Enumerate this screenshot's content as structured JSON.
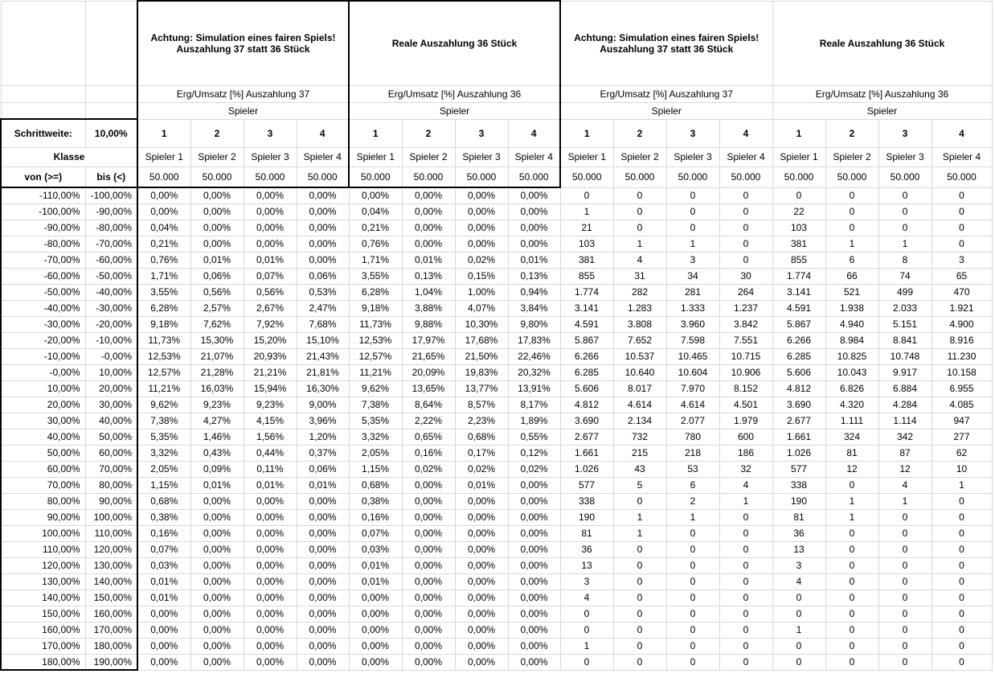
{
  "headers": {
    "title_fair_37": "Achtung: Simulation eines fairen Spiels! Auszahlung 37 statt 36 Stück",
    "title_real_36": "Reale Auszahlung 36 Stück",
    "sub_37": "Erg/Umsatz [%] Auszahlung 37",
    "sub_36": "Erg/Umsatz [%] Auszahlung 36",
    "spieler": "Spieler",
    "schrittweite_label": "Schrittweite:",
    "schrittweite_value": "10,00%",
    "klasse": "Klasse",
    "von": "von (>=)",
    "bis": "bis (<)",
    "player_numbers": [
      "1",
      "2",
      "3",
      "4"
    ],
    "player_names": [
      "Spieler 1",
      "Spieler 2",
      "Spieler 3",
      "Spieler 4"
    ],
    "umsatz": "50.000"
  },
  "rows": [
    {
      "von": "-110,00%",
      "bis": "-100,00%",
      "a": [
        "0,00%",
        "0,00%",
        "0,00%",
        "0,00%"
      ],
      "b": [
        "0,00%",
        "0,00%",
        "0,00%",
        "0,00%"
      ],
      "c": [
        "0",
        "0",
        "0",
        "0"
      ],
      "d": [
        "0",
        "0",
        "0",
        "0"
      ]
    },
    {
      "von": "-100,00%",
      "bis": "-90,00%",
      "a": [
        "0,00%",
        "0,00%",
        "0,00%",
        "0,00%"
      ],
      "b": [
        "0,04%",
        "0,00%",
        "0,00%",
        "0,00%"
      ],
      "c": [
        "1",
        "0",
        "0",
        "0"
      ],
      "d": [
        "22",
        "0",
        "0",
        "0"
      ]
    },
    {
      "von": "-90,00%",
      "bis": "-80,00%",
      "a": [
        "0,04%",
        "0,00%",
        "0,00%",
        "0,00%"
      ],
      "b": [
        "0,21%",
        "0,00%",
        "0,00%",
        "0,00%"
      ],
      "c": [
        "21",
        "0",
        "0",
        "0"
      ],
      "d": [
        "103",
        "0",
        "0",
        "0"
      ]
    },
    {
      "von": "-80,00%",
      "bis": "-70,00%",
      "a": [
        "0,21%",
        "0,00%",
        "0,00%",
        "0,00%"
      ],
      "b": [
        "0,76%",
        "0,00%",
        "0,00%",
        "0,00%"
      ],
      "c": [
        "103",
        "1",
        "1",
        "0"
      ],
      "d": [
        "381",
        "1",
        "1",
        "0"
      ]
    },
    {
      "von": "-70,00%",
      "bis": "-60,00%",
      "a": [
        "0,76%",
        "0,01%",
        "0,01%",
        "0,00%"
      ],
      "b": [
        "1,71%",
        "0,01%",
        "0,02%",
        "0,01%"
      ],
      "c": [
        "381",
        "4",
        "3",
        "0"
      ],
      "d": [
        "855",
        "6",
        "8",
        "3"
      ]
    },
    {
      "von": "-60,00%",
      "bis": "-50,00%",
      "a": [
        "1,71%",
        "0,06%",
        "0,07%",
        "0,06%"
      ],
      "b": [
        "3,55%",
        "0,13%",
        "0,15%",
        "0,13%"
      ],
      "c": [
        "855",
        "31",
        "34",
        "30"
      ],
      "d": [
        "1.774",
        "66",
        "74",
        "65"
      ]
    },
    {
      "von": "-50,00%",
      "bis": "-40,00%",
      "a": [
        "3,55%",
        "0,56%",
        "0,56%",
        "0,53%"
      ],
      "b": [
        "6,28%",
        "1,04%",
        "1,00%",
        "0,94%"
      ],
      "c": [
        "1.774",
        "282",
        "281",
        "264"
      ],
      "d": [
        "3.141",
        "521",
        "499",
        "470"
      ]
    },
    {
      "von": "-40,00%",
      "bis": "-30,00%",
      "a": [
        "6,28%",
        "2,57%",
        "2,67%",
        "2,47%"
      ],
      "b": [
        "9,18%",
        "3,88%",
        "4,07%",
        "3,84%"
      ],
      "c": [
        "3.141",
        "1.283",
        "1.333",
        "1.237"
      ],
      "d": [
        "4.591",
        "1.938",
        "2.033",
        "1.921"
      ]
    },
    {
      "von": "-30,00%",
      "bis": "-20,00%",
      "a": [
        "9,18%",
        "7,62%",
        "7,92%",
        "7,68%"
      ],
      "b": [
        "11,73%",
        "9,88%",
        "10,30%",
        "9,80%"
      ],
      "c": [
        "4.591",
        "3.808",
        "3.960",
        "3.842"
      ],
      "d": [
        "5.867",
        "4.940",
        "5.151",
        "4.900"
      ]
    },
    {
      "von": "-20,00%",
      "bis": "-10,00%",
      "a": [
        "11,73%",
        "15,30%",
        "15,20%",
        "15,10%"
      ],
      "b": [
        "12,53%",
        "17,97%",
        "17,68%",
        "17,83%"
      ],
      "c": [
        "5.867",
        "7.652",
        "7.598",
        "7.551"
      ],
      "d": [
        "6.266",
        "8.984",
        "8.841",
        "8.916"
      ]
    },
    {
      "von": "-10,00%",
      "bis": "-0,00%",
      "a": [
        "12,53%",
        "21,07%",
        "20,93%",
        "21,43%"
      ],
      "b": [
        "12,57%",
        "21,65%",
        "21,50%",
        "22,46%"
      ],
      "c": [
        "6.266",
        "10.537",
        "10.465",
        "10.715"
      ],
      "d": [
        "6.285",
        "10.825",
        "10.748",
        "11.230"
      ]
    },
    {
      "von": "-0,00%",
      "bis": "10,00%",
      "a": [
        "12,57%",
        "21,28%",
        "21,21%",
        "21,81%"
      ],
      "b": [
        "11,21%",
        "20,09%",
        "19,83%",
        "20,32%"
      ],
      "c": [
        "6.285",
        "10.640",
        "10.604",
        "10.906"
      ],
      "d": [
        "5.606",
        "10.043",
        "9.917",
        "10.158"
      ]
    },
    {
      "von": "10,00%",
      "bis": "20,00%",
      "a": [
        "11,21%",
        "16,03%",
        "15,94%",
        "16,30%"
      ],
      "b": [
        "9,62%",
        "13,65%",
        "13,77%",
        "13,91%"
      ],
      "c": [
        "5.606",
        "8.017",
        "7.970",
        "8.152"
      ],
      "d": [
        "4.812",
        "6.826",
        "6.884",
        "6.955"
      ]
    },
    {
      "von": "20,00%",
      "bis": "30,00%",
      "a": [
        "9,62%",
        "9,23%",
        "9,23%",
        "9,00%"
      ],
      "b": [
        "7,38%",
        "8,64%",
        "8,57%",
        "8,17%"
      ],
      "c": [
        "4.812",
        "4.614",
        "4.614",
        "4.501"
      ],
      "d": [
        "3.690",
        "4.320",
        "4.284",
        "4.085"
      ]
    },
    {
      "von": "30,00%",
      "bis": "40,00%",
      "a": [
        "7,38%",
        "4,27%",
        "4,15%",
        "3,96%"
      ],
      "b": [
        "5,35%",
        "2,22%",
        "2,23%",
        "1,89%"
      ],
      "c": [
        "3.690",
        "2.134",
        "2.077",
        "1.979"
      ],
      "d": [
        "2.677",
        "1.111",
        "1.114",
        "947"
      ]
    },
    {
      "von": "40,00%",
      "bis": "50,00%",
      "a": [
        "5,35%",
        "1,46%",
        "1,56%",
        "1,20%"
      ],
      "b": [
        "3,32%",
        "0,65%",
        "0,68%",
        "0,55%"
      ],
      "c": [
        "2.677",
        "732",
        "780",
        "600"
      ],
      "d": [
        "1.661",
        "324",
        "342",
        "277"
      ]
    },
    {
      "von": "50,00%",
      "bis": "60,00%",
      "a": [
        "3,32%",
        "0,43%",
        "0,44%",
        "0,37%"
      ],
      "b": [
        "2,05%",
        "0,16%",
        "0,17%",
        "0,12%"
      ],
      "c": [
        "1.661",
        "215",
        "218",
        "186"
      ],
      "d": [
        "1.026",
        "81",
        "87",
        "62"
      ]
    },
    {
      "von": "60,00%",
      "bis": "70,00%",
      "a": [
        "2,05%",
        "0,09%",
        "0,11%",
        "0,06%"
      ],
      "b": [
        "1,15%",
        "0,02%",
        "0,02%",
        "0,02%"
      ],
      "c": [
        "1.026",
        "43",
        "53",
        "32"
      ],
      "d": [
        "577",
        "12",
        "12",
        "10"
      ]
    },
    {
      "von": "70,00%",
      "bis": "80,00%",
      "a": [
        "1,15%",
        "0,01%",
        "0,01%",
        "0,01%"
      ],
      "b": [
        "0,68%",
        "0,00%",
        "0,01%",
        "0,00%"
      ],
      "c": [
        "577",
        "5",
        "6",
        "4"
      ],
      "d": [
        "338",
        "0",
        "4",
        "1"
      ]
    },
    {
      "von": "80,00%",
      "bis": "90,00%",
      "a": [
        "0,68%",
        "0,00%",
        "0,00%",
        "0,00%"
      ],
      "b": [
        "0,38%",
        "0,00%",
        "0,00%",
        "0,00%"
      ],
      "c": [
        "338",
        "0",
        "2",
        "1"
      ],
      "d": [
        "190",
        "1",
        "1",
        "0"
      ]
    },
    {
      "von": "90,00%",
      "bis": "100,00%",
      "a": [
        "0,38%",
        "0,00%",
        "0,00%",
        "0,00%"
      ],
      "b": [
        "0,16%",
        "0,00%",
        "0,00%",
        "0,00%"
      ],
      "c": [
        "190",
        "1",
        "1",
        "0"
      ],
      "d": [
        "81",
        "1",
        "0",
        "0"
      ]
    },
    {
      "von": "100,00%",
      "bis": "110,00%",
      "a": [
        "0,16%",
        "0,00%",
        "0,00%",
        "0,00%"
      ],
      "b": [
        "0,07%",
        "0,00%",
        "0,00%",
        "0,00%"
      ],
      "c": [
        "81",
        "1",
        "0",
        "0"
      ],
      "d": [
        "36",
        "0",
        "0",
        "0"
      ]
    },
    {
      "von": "110,00%",
      "bis": "120,00%",
      "a": [
        "0,07%",
        "0,00%",
        "0,00%",
        "0,00%"
      ],
      "b": [
        "0,03%",
        "0,00%",
        "0,00%",
        "0,00%"
      ],
      "c": [
        "36",
        "0",
        "0",
        "0"
      ],
      "d": [
        "13",
        "0",
        "0",
        "0"
      ]
    },
    {
      "von": "120,00%",
      "bis": "130,00%",
      "a": [
        "0,03%",
        "0,00%",
        "0,00%",
        "0,00%"
      ],
      "b": [
        "0,01%",
        "0,00%",
        "0,00%",
        "0,00%"
      ],
      "c": [
        "13",
        "0",
        "0",
        "0"
      ],
      "d": [
        "3",
        "0",
        "0",
        "0"
      ]
    },
    {
      "von": "130,00%",
      "bis": "140,00%",
      "a": [
        "0,01%",
        "0,00%",
        "0,00%",
        "0,00%"
      ],
      "b": [
        "0,01%",
        "0,00%",
        "0,00%",
        "0,00%"
      ],
      "c": [
        "3",
        "0",
        "0",
        "0"
      ],
      "d": [
        "4",
        "0",
        "0",
        "0"
      ]
    },
    {
      "von": "140,00%",
      "bis": "150,00%",
      "a": [
        "0,01%",
        "0,00%",
        "0,00%",
        "0,00%"
      ],
      "b": [
        "0,00%",
        "0,00%",
        "0,00%",
        "0,00%"
      ],
      "c": [
        "4",
        "0",
        "0",
        "0"
      ],
      "d": [
        "0",
        "0",
        "0",
        "0"
      ]
    },
    {
      "von": "150,00%",
      "bis": "160,00%",
      "a": [
        "0,00%",
        "0,00%",
        "0,00%",
        "0,00%"
      ],
      "b": [
        "0,00%",
        "0,00%",
        "0,00%",
        "0,00%"
      ],
      "c": [
        "0",
        "0",
        "0",
        "0"
      ],
      "d": [
        "0",
        "0",
        "0",
        "0"
      ]
    },
    {
      "von": "160,00%",
      "bis": "170,00%",
      "a": [
        "0,00%",
        "0,00%",
        "0,00%",
        "0,00%"
      ],
      "b": [
        "0,00%",
        "0,00%",
        "0,00%",
        "0,00%"
      ],
      "c": [
        "0",
        "0",
        "0",
        "0"
      ],
      "d": [
        "1",
        "0",
        "0",
        "0"
      ]
    },
    {
      "von": "170,00%",
      "bis": "180,00%",
      "a": [
        "0,00%",
        "0,00%",
        "0,00%",
        "0,00%"
      ],
      "b": [
        "0,00%",
        "0,00%",
        "0,00%",
        "0,00%"
      ],
      "c": [
        "1",
        "0",
        "0",
        "0"
      ],
      "d": [
        "0",
        "0",
        "0",
        "0"
      ]
    },
    {
      "von": "180,00%",
      "bis": "190,00%",
      "a": [
        "0,00%",
        "0,00%",
        "0,00%",
        "0,00%"
      ],
      "b": [
        "0,00%",
        "0,00%",
        "0,00%",
        "0,00%"
      ],
      "c": [
        "0",
        "0",
        "0",
        "0"
      ],
      "d": [
        "0",
        "0",
        "0",
        "0"
      ]
    }
  ]
}
